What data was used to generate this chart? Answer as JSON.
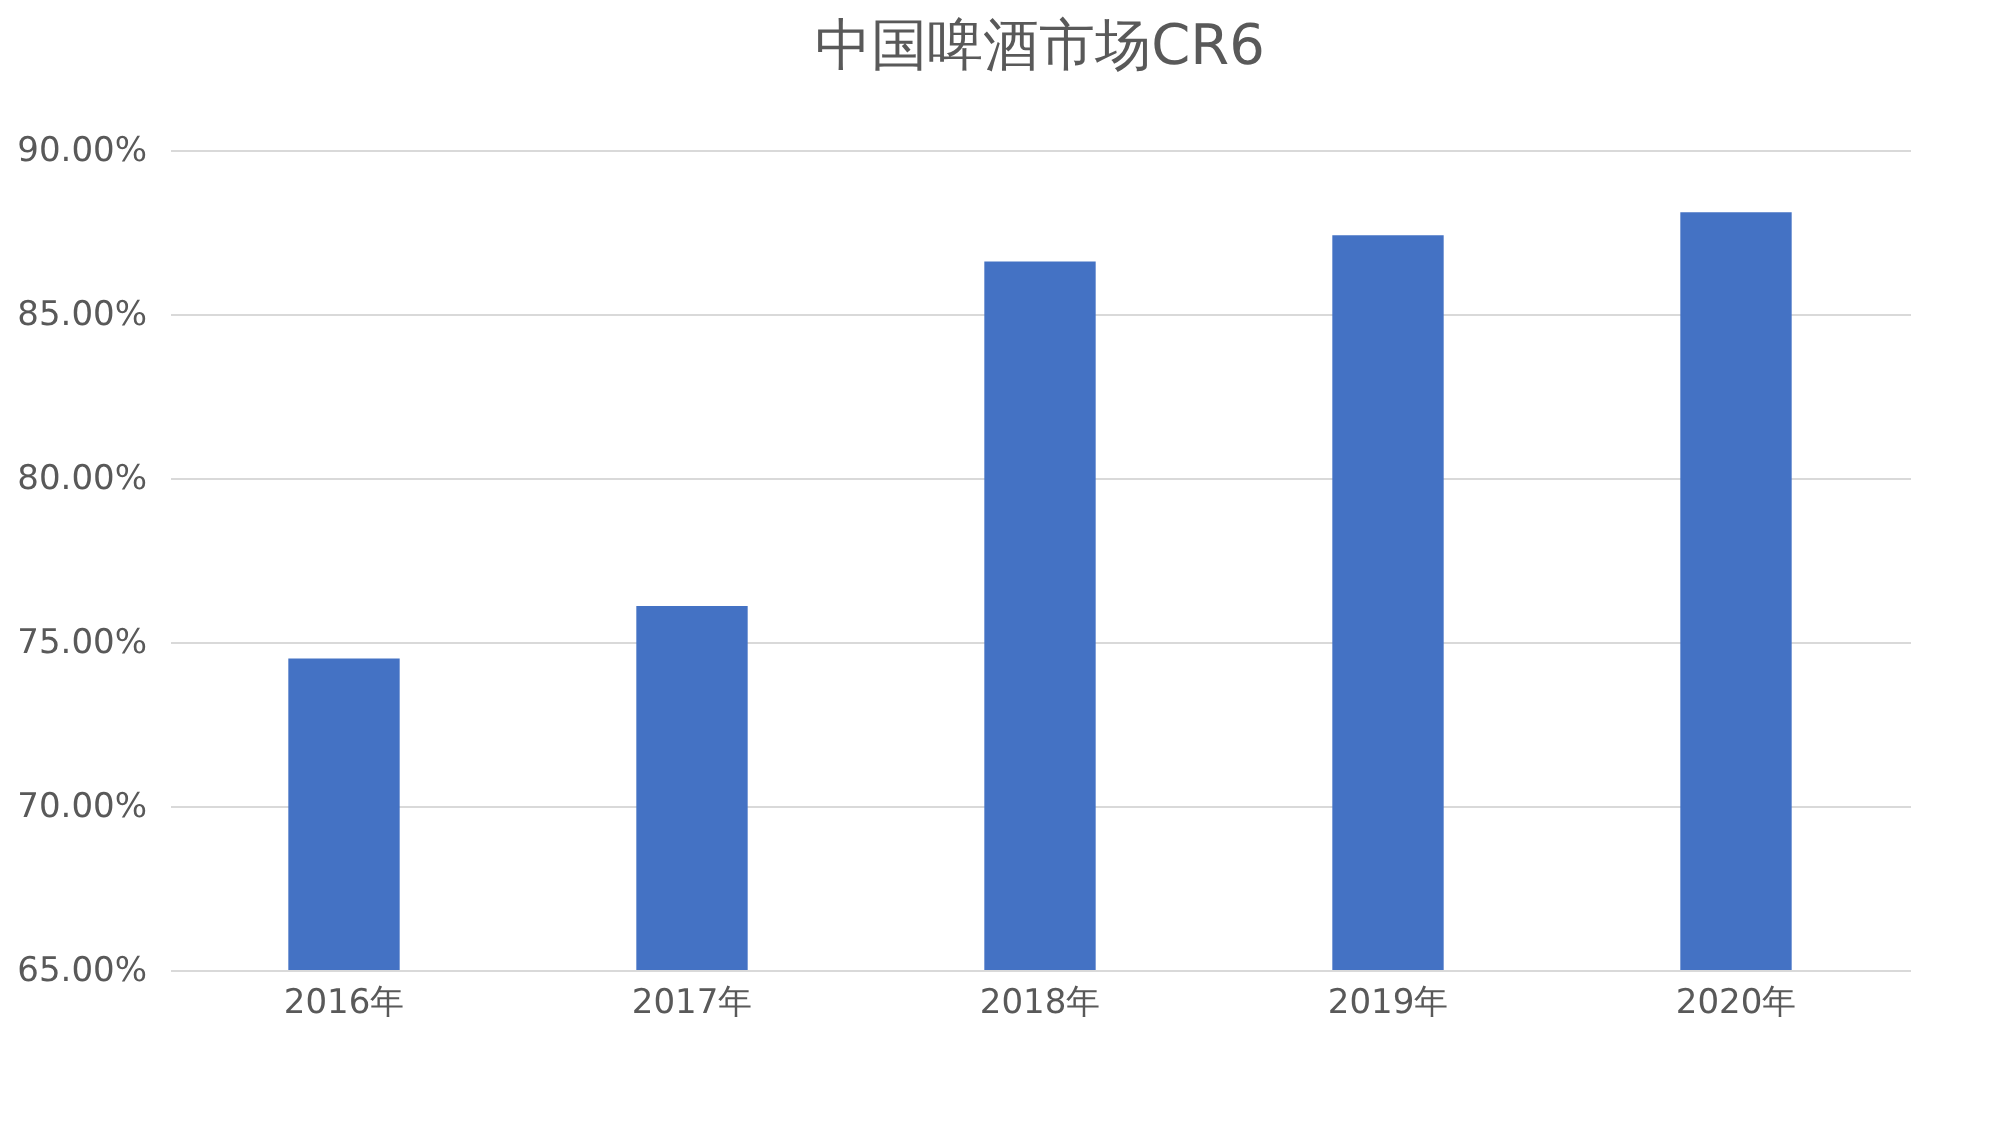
{
  "chart_data": {
    "type": "bar",
    "title": "中国啤酒市场CR6",
    "categories": [
      "2016年",
      "2017年",
      "2018年",
      "2019年",
      "2020年"
    ],
    "values": [
      74.5,
      76.1,
      86.6,
      87.4,
      88.1
    ],
    "color": "#4472c4",
    "ylim": [
      65,
      90
    ],
    "yticks": [
      {
        "value": 65,
        "label": "65.00%"
      },
      {
        "value": 70,
        "label": "70.00%"
      },
      {
        "value": 75,
        "label": "75.00%"
      },
      {
        "value": 80,
        "label": "80.00%"
      },
      {
        "value": 85,
        "label": "85.00%"
      },
      {
        "value": 90,
        "label": "90.00%"
      }
    ],
    "grid": "y"
  }
}
